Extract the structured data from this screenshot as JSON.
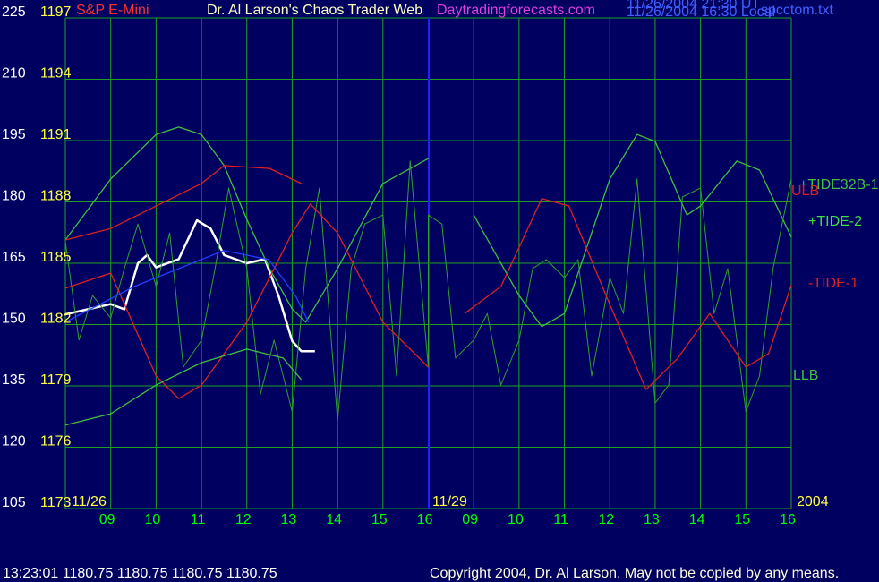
{
  "chart_data": {
    "type": "line",
    "title": "Dr. Al Larson's Chaos Trader Web",
    "subtitle": "Daytradingforecasts.com",
    "annotations": [
      "11/26/2004 21:30 UT",
      "11/26/2004 16:30 Local",
      "spcctom.txt",
      "11/26",
      "11/29",
      "2004",
      "13:23:01 1180.75 1180.75 1180.75 1180.75",
      "Copyright 2004, Dr. Al Larson. May not be copied by any means."
    ],
    "xlim": [
      0,
      16
    ],
    "xticks": [
      {
        "value": 1,
        "label": "09"
      },
      {
        "value": 2,
        "label": "10"
      },
      {
        "value": 3,
        "label": "11"
      },
      {
        "value": 4,
        "label": "12"
      },
      {
        "value": 5,
        "label": "13"
      },
      {
        "value": 6,
        "label": "14"
      },
      {
        "value": 7,
        "label": "15"
      },
      {
        "value": 8,
        "label": "16"
      },
      {
        "value": 9,
        "label": "09"
      },
      {
        "value": 10,
        "label": "10"
      },
      {
        "value": 11,
        "label": "11"
      },
      {
        "value": 12,
        "label": "12"
      },
      {
        "value": 13,
        "label": "13"
      },
      {
        "value": 14,
        "label": "14"
      },
      {
        "value": 15,
        "label": "15"
      },
      {
        "value": 16,
        "label": "16"
      }
    ],
    "ylim": [
      1173,
      1197
    ],
    "yticks": [
      1173,
      1176,
      1179,
      1182,
      1185,
      1188,
      1191,
      1194,
      1197
    ],
    "y2lim": [
      105,
      225
    ],
    "y2ticks": [
      105,
      120,
      135,
      150,
      165,
      180,
      195,
      210,
      225
    ],
    "grid": true,
    "series": [
      {
        "name": "S&P E-Mini",
        "color": "#ffffff",
        "x": [
          0,
          0.5,
          1,
          1.3,
          1.6,
          1.8,
          2,
          2.5,
          2.9,
          3.2,
          3.5,
          4,
          4.4,
          4.7,
          5,
          5.2,
          5.5
        ],
        "values": [
          1182.5,
          1182.75,
          1183.0,
          1182.75,
          1185.0,
          1185.4,
          1184.8,
          1185.2,
          1187.1,
          1186.7,
          1185.4,
          1185.0,
          1185.2,
          1183.4,
          1181.2,
          1180.7,
          1180.7
        ]
      },
      {
        "name": "+TIDE32B-1",
        "color": "#40c040",
        "axis": "y2",
        "x": [
          0,
          1,
          2,
          2.5,
          3,
          3.5,
          4,
          4.5,
          5,
          5.3,
          6,
          7,
          8,
          8,
          9,
          10,
          10.5,
          11,
          12,
          12.6,
          13,
          13.7,
          14,
          14.8,
          15.3,
          16
        ],
        "values": [
          170.7,
          185.6,
          196.5,
          198.3,
          196.5,
          188.9,
          175.7,
          163.7,
          153.8,
          150.6,
          163.7,
          184.5,
          190.6,
          null,
          176.8,
          157.1,
          149.5,
          152.7,
          185.6,
          196.5,
          194.8,
          176.8,
          179.0,
          190.0,
          187.8,
          171.4
        ]
      },
      {
        "name": "ULB",
        "color": "#e02020",
        "axis": "y2",
        "x": [
          0,
          1,
          2,
          3,
          3.5,
          4.5,
          5.2
        ],
        "values": [
          170.7,
          173.5,
          179.0,
          184.5,
          188.9,
          188.2,
          184.5
        ]
      },
      {
        "name": "+TIDE-2",
        "color": "#30a030",
        "axis": "y2",
        "x": [
          0,
          0.3,
          0.6,
          1,
          1.3,
          1.6,
          2,
          2.3,
          2.6,
          3,
          3.3,
          3.6,
          4,
          4.3,
          4.6,
          5,
          5.3,
          5.6,
          6,
          6.3,
          6.6,
          7,
          7.3,
          7.6,
          8,
          8,
          8.3,
          8.6,
          9,
          9.3,
          9.6,
          10,
          10.3,
          10.6,
          11,
          11.3,
          11.6,
          12,
          12.3,
          12.6,
          13,
          13.3,
          13.6,
          14,
          14.3,
          14.6,
          15,
          15.3,
          15.6,
          16
        ],
        "values": [
          170.3,
          146.2,
          157.1,
          151.6,
          163.7,
          174.6,
          159.3,
          172.4,
          139.6,
          146.2,
          163.7,
          183.4,
          163.7,
          133.0,
          146.2,
          128.7,
          163.7,
          183.4,
          126.5,
          163.7,
          174.6,
          176.8,
          137.4,
          190.0,
          139.6,
          176.8,
          174.6,
          141.8,
          146.2,
          152.7,
          135.2,
          146.2,
          163.7,
          165.9,
          161.5,
          165.9,
          137.4,
          161.5,
          152.7,
          185.6,
          130.8,
          135.2,
          181.2,
          183.4,
          152.7,
          163.7,
          128.7,
          137.4,
          163.7,
          185.6
        ]
      },
      {
        "name": "-TIDE-1",
        "color": "#e02020",
        "axis": "y2",
        "x": [
          0,
          1,
          2,
          2.5,
          3,
          4,
          5,
          5.4,
          6,
          7,
          8,
          8,
          8.8,
          9.6,
          10.5,
          11.1,
          12,
          12.8,
          13.5,
          14.2,
          15,
          15.5,
          16
        ],
        "values": [
          158.9,
          162.6,
          137.4,
          131.9,
          135.2,
          150.6,
          172.4,
          179.5,
          172.4,
          150.6,
          139.6,
          null,
          152.7,
          159.3,
          180.8,
          179.0,
          154.9,
          134.1,
          141.8,
          152.7,
          139.6,
          142.9,
          159.7
        ]
      },
      {
        "name": "LLB",
        "color": "#40c040",
        "axis": "y2",
        "x": [
          0,
          1,
          2,
          3,
          4,
          4.8,
          5.2
        ],
        "values": [
          125.4,
          128.2,
          135.2,
          140.7,
          144.0,
          141.8,
          136.5
        ]
      },
      {
        "color": "#2040ff",
        "axis": "y2",
        "x": [
          0,
          1.52,
          3.49,
          4.48,
          5.07,
          5.36
        ],
        "values": [
          150.6,
          159.3,
          168.1,
          165.9,
          157.1,
          150.6
        ]
      }
    ]
  }
}
